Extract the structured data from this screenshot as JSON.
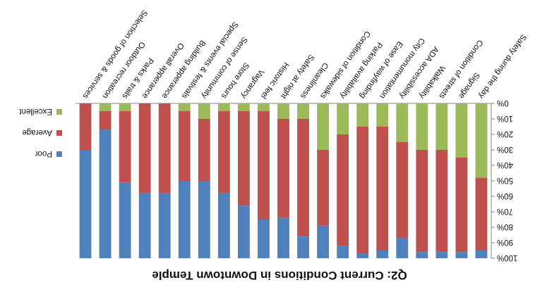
{
  "chart_data": {
    "type": "bar",
    "stacked": true,
    "percent_stacked": true,
    "orientation": "rendered rotated 180 degrees (upside down)",
    "title": "Q2: Current Conditions in Downtown Temple",
    "categories": [
      "Safety during the day",
      "Signage",
      "Condition of streets",
      "Walkability",
      "ADA accessibility",
      "City monumentation",
      "Ease of wayfinding",
      "Parking availability",
      "Condition of sidewalks",
      "Cleanliness",
      "Safety at night",
      "Historic feel",
      "Vagrancy",
      "Store hours",
      "Sense of community",
      "Special events & festivals",
      "Building apperance",
      "Overall apperance",
      "Parks & trails",
      "Outdoor recreation",
      "Selection of goods & services"
    ],
    "series": [
      {
        "name": "Excellent",
        "color": "#9bbb59",
        "values": [
          48,
          35,
          30,
          30,
          25,
          15,
          15,
          20,
          30,
          10,
          10,
          5,
          5,
          5,
          10,
          5,
          0,
          0,
          5,
          5,
          0
        ]
      },
      {
        "name": "Average",
        "color": "#c0504d",
        "values": [
          47,
          61,
          66,
          66,
          62,
          80,
          82,
          72,
          49,
          76,
          64,
          70,
          61,
          53,
          40,
          45,
          58,
          58,
          46,
          12,
          30
        ]
      },
      {
        "name": "Poor",
        "color": "#4f81bd",
        "values": [
          5,
          4,
          4,
          4,
          13,
          5,
          3,
          8,
          21,
          14,
          26,
          25,
          34,
          42,
          50,
          50,
          42,
          42,
          49,
          83,
          70
        ]
      }
    ],
    "ylim": [
      0,
      100
    ],
    "yticks": [
      "0%",
      "10%",
      "20%",
      "30%",
      "40%",
      "50%",
      "60%",
      "70%",
      "80%",
      "90%",
      "100%"
    ],
    "legend_position": "right",
    "grid": false
  }
}
